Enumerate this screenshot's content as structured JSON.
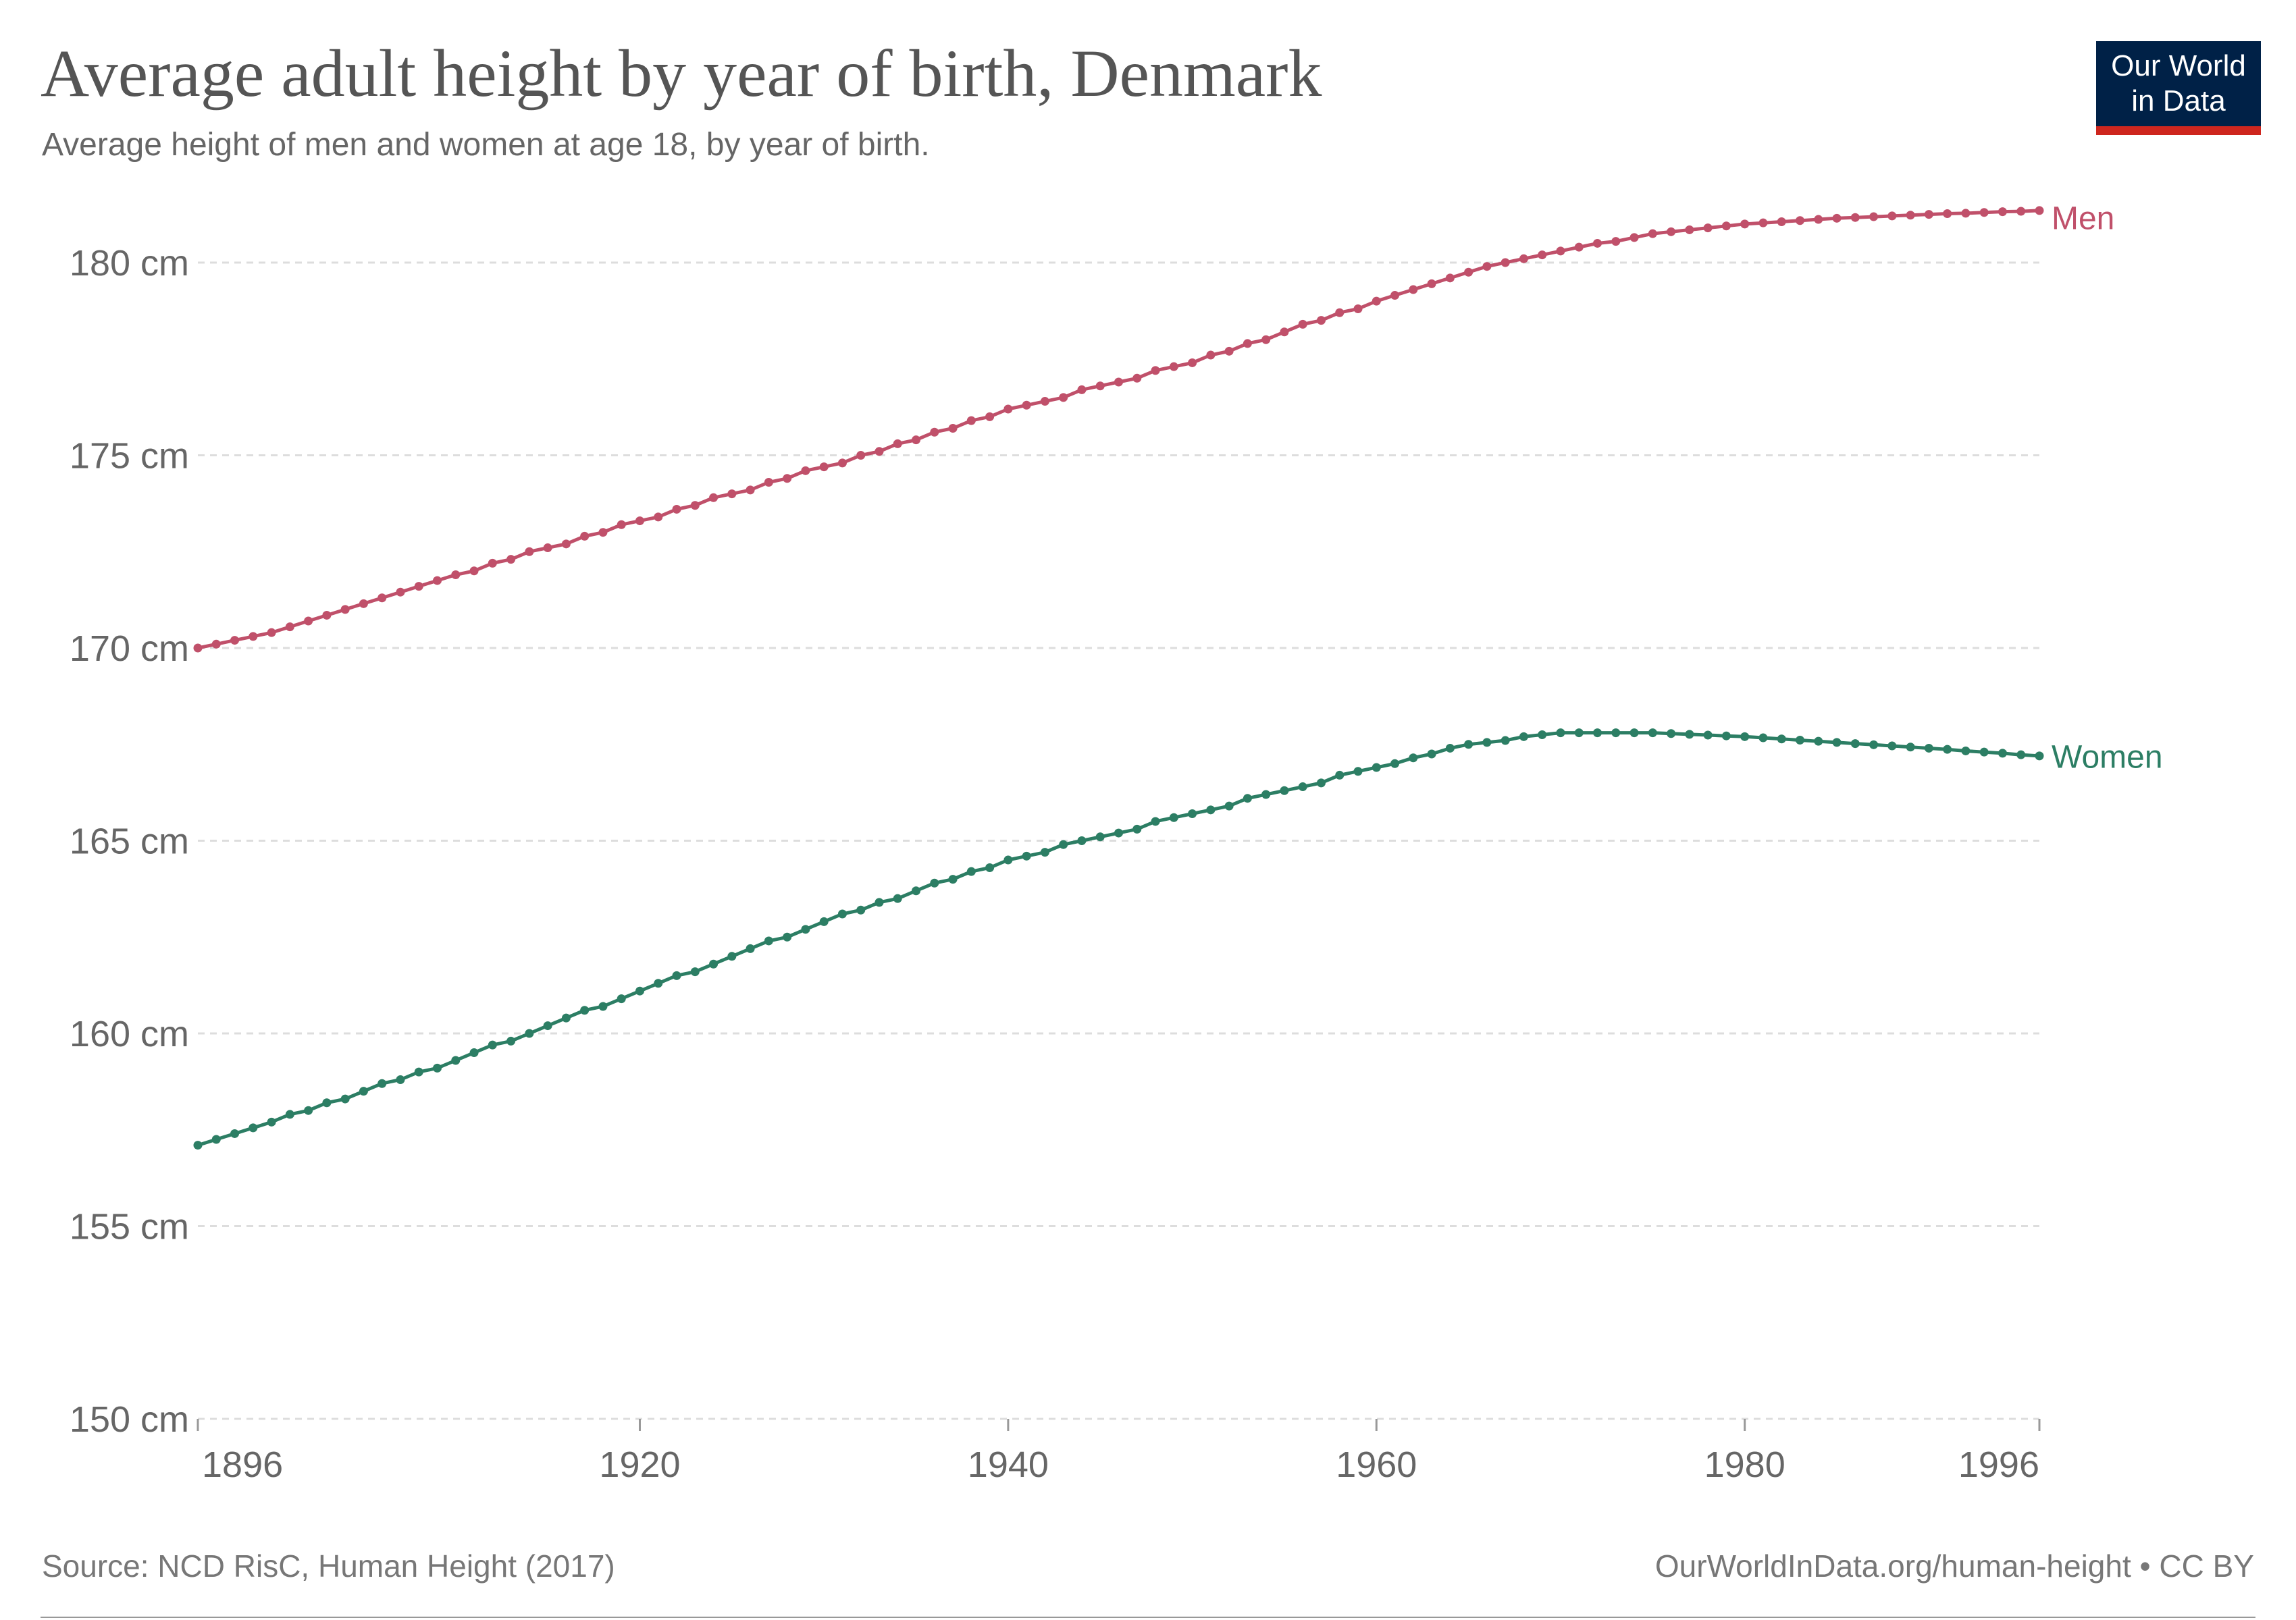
{
  "chart_data": {
    "type": "line",
    "title": "Average adult height by year of birth, Denmark",
    "subtitle": "Average height of men and women at age 18, by year of birth.",
    "logo": [
      "Our World",
      "in Data"
    ],
    "source": "Source: NCD RisC, Human Height (2017)",
    "credit": "OurWorldInData.org/human-height • CC BY",
    "x": [
      1896,
      1897,
      1898,
      1899,
      1900,
      1901,
      1902,
      1903,
      1904,
      1905,
      1906,
      1907,
      1908,
      1909,
      1910,
      1911,
      1912,
      1913,
      1914,
      1915,
      1916,
      1917,
      1918,
      1919,
      1920,
      1921,
      1922,
      1923,
      1924,
      1925,
      1926,
      1927,
      1928,
      1929,
      1930,
      1931,
      1932,
      1933,
      1934,
      1935,
      1936,
      1937,
      1938,
      1939,
      1940,
      1941,
      1942,
      1943,
      1944,
      1945,
      1946,
      1947,
      1948,
      1949,
      1950,
      1951,
      1952,
      1953,
      1954,
      1955,
      1956,
      1957,
      1958,
      1959,
      1960,
      1961,
      1962,
      1963,
      1964,
      1965,
      1966,
      1967,
      1968,
      1969,
      1970,
      1971,
      1972,
      1973,
      1974,
      1975,
      1976,
      1977,
      1978,
      1979,
      1980,
      1981,
      1982,
      1983,
      1984,
      1985,
      1986,
      1987,
      1988,
      1989,
      1990,
      1991,
      1992,
      1993,
      1994,
      1995,
      1996
    ],
    "series": [
      {
        "name": "Men",
        "color": "#c0506a",
        "values": [
          170.0,
          170.1,
          170.2,
          170.3,
          170.4,
          170.55,
          170.7,
          170.85,
          171.0,
          171.15,
          171.3,
          171.45,
          171.6,
          171.75,
          171.9,
          172.0,
          172.2,
          172.3,
          172.5,
          172.6,
          172.7,
          172.9,
          173.0,
          173.2,
          173.3,
          173.4,
          173.6,
          173.7,
          173.9,
          174.0,
          174.1,
          174.3,
          174.4,
          174.6,
          174.7,
          174.8,
          175.0,
          175.1,
          175.3,
          175.4,
          175.6,
          175.7,
          175.9,
          176.0,
          176.2,
          176.3,
          176.4,
          176.5,
          176.7,
          176.8,
          176.9,
          177.0,
          177.2,
          177.3,
          177.4,
          177.6,
          177.7,
          177.9,
          178.0,
          178.2,
          178.4,
          178.5,
          178.7,
          178.8,
          179.0,
          179.15,
          179.3,
          179.45,
          179.6,
          179.75,
          179.9,
          180.0,
          180.1,
          180.2,
          180.3,
          180.4,
          180.5,
          180.55,
          180.65,
          180.75,
          180.8,
          180.85,
          180.9,
          180.95,
          181.0,
          181.03,
          181.06,
          181.09,
          181.12,
          181.15,
          181.17,
          181.19,
          181.21,
          181.23,
          181.25,
          181.27,
          181.28,
          181.3,
          181.32,
          181.33,
          181.35
        ]
      },
      {
        "name": "Women",
        "color": "#2c7e64",
        "values": [
          157.1,
          157.25,
          157.4,
          157.55,
          157.7,
          157.9,
          158.0,
          158.2,
          158.3,
          158.5,
          158.7,
          158.8,
          159.0,
          159.1,
          159.3,
          159.5,
          159.7,
          159.8,
          160.0,
          160.2,
          160.4,
          160.6,
          160.7,
          160.9,
          161.1,
          161.3,
          161.5,
          161.6,
          161.8,
          162.0,
          162.2,
          162.4,
          162.5,
          162.7,
          162.9,
          163.1,
          163.2,
          163.4,
          163.5,
          163.7,
          163.9,
          164.0,
          164.2,
          164.3,
          164.5,
          164.6,
          164.7,
          164.9,
          165.0,
          165.1,
          165.2,
          165.3,
          165.5,
          165.6,
          165.7,
          165.8,
          165.9,
          166.1,
          166.2,
          166.3,
          166.4,
          166.5,
          166.7,
          166.8,
          166.9,
          167.0,
          167.15,
          167.25,
          167.4,
          167.5,
          167.55,
          167.6,
          167.7,
          167.75,
          167.8,
          167.8,
          167.8,
          167.8,
          167.8,
          167.8,
          167.78,
          167.76,
          167.74,
          167.72,
          167.7,
          167.67,
          167.64,
          167.61,
          167.58,
          167.55,
          167.52,
          167.49,
          167.46,
          167.43,
          167.4,
          167.37,
          167.33,
          167.3,
          167.27,
          167.23,
          167.2
        ]
      }
    ],
    "xlim": [
      1896,
      1996
    ],
    "xticks": [
      1896,
      1920,
      1940,
      1960,
      1980,
      1996
    ],
    "ylim": [
      150,
      180
    ],
    "yticks": [
      {
        "value": 150,
        "label": "150 cm"
      },
      {
        "value": 155,
        "label": "155 cm"
      },
      {
        "value": 160,
        "label": "160 cm"
      },
      {
        "value": 165,
        "label": "165 cm"
      },
      {
        "value": 170,
        "label": "170 cm"
      },
      {
        "value": 175,
        "label": "175 cm"
      },
      {
        "value": 180,
        "label": "180 cm"
      }
    ],
    "grid": true
  }
}
